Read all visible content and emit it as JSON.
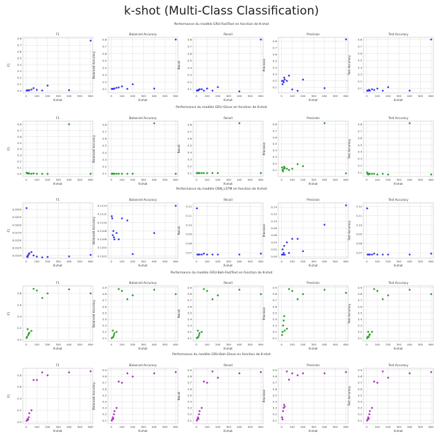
{
  "figure": {
    "title": "k-shot (Multi-Class Classification)"
  },
  "colors": {
    "blue": "#3b3bf0",
    "green": "#2ca02c",
    "purple": "#b430c8",
    "grid": "#e3e3e3",
    "frame": "#c8c8c8"
  },
  "chart_data": [
    {
      "type": "scatter",
      "model": "GRU-FastText",
      "color": "blue",
      "title": "Performance du modèle GRU-FastText en fonction de K-shot",
      "xlabel": "K-shot",
      "xlim": [
        -30,
        620
      ],
      "xticks": [
        "0",
        "100",
        "200",
        "300",
        "400",
        "500",
        "600"
      ],
      "x": [
        5,
        10,
        15,
        20,
        25,
        30,
        50,
        70,
        100,
        150,
        200,
        400,
        600
      ],
      "panels": [
        {
          "title": "F1",
          "ylabel": "F1",
          "ylim": [
            -0.03,
            0.82
          ],
          "yticks": [
            "0.0",
            "0.1",
            "0.2",
            "0.3",
            "0.4",
            "0.5",
            "0.6",
            "0.7",
            "0.8"
          ],
          "values": [
            0.005,
            0.008,
            0.005,
            0.006,
            0.01,
            0.008,
            0.02,
            0.04,
            0.015,
            0.005,
            0.08,
            0.01,
            0.77
          ]
        },
        {
          "title": "Balanced Accuracy",
          "ylabel": "Balanced Accuracy",
          "ylim": [
            0.05,
            0.83
          ],
          "yticks": [
            "0.1",
            "0.2",
            "0.3",
            "0.4",
            "0.5",
            "0.6",
            "0.7",
            "0.8"
          ],
          "values": [
            0.105,
            0.105,
            0.105,
            0.105,
            0.108,
            0.11,
            0.12,
            0.125,
            0.14,
            0.105,
            0.17,
            0.11,
            0.8
          ]
        },
        {
          "title": "Recall",
          "ylabel": "Recall",
          "ylim": [
            0.05,
            0.83
          ],
          "yticks": [
            "0.1",
            "0.2",
            "0.3",
            "0.4",
            "0.5",
            "0.6",
            "0.7",
            "0.8"
          ],
          "values": [
            0.08,
            0.085,
            0.08,
            0.09,
            0.09,
            0.1,
            0.1,
            0.08,
            0.11,
            0.08,
            0.13,
            0.07,
            0.8
          ]
        },
        {
          "title": "Precision",
          "ylabel": "Precision",
          "ylim": [
            0.02,
            0.86
          ],
          "yticks": [
            "0.1",
            "0.2",
            "0.3",
            "0.4",
            "0.5",
            "0.6",
            "0.7",
            "0.8"
          ],
          "values": [
            0.2,
            0.15,
            0.2,
            0.18,
            0.25,
            0.22,
            0.2,
            0.28,
            0.07,
            0.05,
            0.22,
            0.09,
            0.83
          ]
        },
        {
          "title": "Test Accuracy",
          "ylabel": "Test Accuracy",
          "ylim": [
            0.04,
            0.83
          ],
          "yticks": [
            "0.1",
            "0.2",
            "0.3",
            "0.4",
            "0.5",
            "0.6",
            "0.7",
            "0.8"
          ],
          "values": [
            0.07,
            0.07,
            0.07,
            0.08,
            0.08,
            0.07,
            0.09,
            0.08,
            0.1,
            0.07,
            0.12,
            0.07,
            0.8
          ]
        }
      ]
    },
    {
      "type": "scatter",
      "model": "GRU-Glove",
      "color": "green",
      "title": "Performance du modèle GRU-Glove en fonction de K-shot",
      "xlabel": "K-shot",
      "xlim": [
        -30,
        620
      ],
      "xticks": [
        "0",
        "100",
        "200",
        "300",
        "400",
        "500",
        "600"
      ],
      "x": [
        5,
        10,
        15,
        20,
        25,
        30,
        50,
        70,
        100,
        150,
        200,
        400,
        600
      ],
      "panels": [
        {
          "title": "F1",
          "ylabel": "F1",
          "ylim": [
            -0.04,
            0.85
          ],
          "yticks": [
            "0.0",
            "0.1",
            "0.2",
            "0.3",
            "0.4",
            "0.5",
            "0.6",
            "0.7",
            "0.8"
          ],
          "values": [
            0.02,
            0.015,
            0.01,
            0.01,
            0.012,
            0.008,
            0.005,
            0.01,
            0.005,
            0.005,
            0.003,
            0.8,
            0.005
          ]
        },
        {
          "title": "Balanced Accuracy",
          "ylabel": "Balanced Accuracy",
          "ylim": [
            0.06,
            0.85
          ],
          "yticks": [
            "0.1",
            "0.2",
            "0.3",
            "0.4",
            "0.5",
            "0.6",
            "0.7",
            "0.8"
          ],
          "values": [
            0.1,
            0.1,
            0.1,
            0.1,
            0.1,
            0.1,
            0.1,
            0.1,
            0.1,
            0.1,
            0.1,
            0.82,
            0.1
          ]
        },
        {
          "title": "Recall",
          "ylabel": "Recall",
          "ylim": [
            0.05,
            0.85
          ],
          "yticks": [
            "0.1",
            "0.2",
            "0.3",
            "0.4",
            "0.5",
            "0.6",
            "0.7",
            "0.8"
          ],
          "values": [
            0.1,
            0.1,
            0.1,
            0.1,
            0.1,
            0.1,
            0.1,
            0.1,
            0.1,
            0.1,
            0.1,
            0.82,
            0.1
          ]
        },
        {
          "title": "Precision",
          "ylabel": "Precision",
          "ylim": [
            0.0,
            0.85
          ],
          "yticks": [
            "0.1",
            "0.2",
            "0.3",
            "0.4",
            "0.5",
            "0.6",
            "0.7",
            "0.8"
          ],
          "values": [
            0.14,
            0.1,
            0.08,
            0.12,
            0.15,
            0.13,
            0.12,
            0.1,
            0.12,
            0.19,
            0.16,
            0.82,
            0.05
          ]
        },
        {
          "title": "Test Accuracy",
          "ylabel": "Test Accuracy",
          "ylim": [
            0.04,
            0.85
          ],
          "yticks": [
            "0.1",
            "0.2",
            "0.3",
            "0.4",
            "0.5",
            "0.6",
            "0.7",
            "0.8"
          ],
          "values": [
            0.1,
            0.08,
            0.07,
            0.08,
            0.08,
            0.08,
            0.08,
            0.08,
            0.07,
            0.08,
            0.07,
            0.82,
            0.07
          ]
        }
      ]
    },
    {
      "type": "scatter",
      "model": "CNN_LSTM",
      "color": "blue",
      "title": "Performance du modèle CNN_LSTM en fonction de K-shot",
      "xlabel": "K-shot",
      "xlim": [
        -30,
        620
      ],
      "xticks": [
        "0",
        "100",
        "200",
        "300",
        "400",
        "500",
        "600"
      ],
      "x": [
        5,
        10,
        15,
        20,
        25,
        30,
        50,
        70,
        100,
        150,
        200,
        400,
        600
      ],
      "panels": [
        {
          "title": "F1",
          "ylabel": "F1",
          "ylim": [
            0.0092,
            0.0272
          ],
          "yticks": [
            "0.0100",
            "0.0125",
            "0.0150",
            "0.0175",
            "0.0200",
            "0.0225",
            "0.0250"
          ],
          "values": [
            0.0255,
            0.0098,
            0.0096,
            0.0102,
            0.0105,
            0.0108,
            0.0112,
            0.0101,
            0.0097,
            0.0095,
            0.0096,
            0.0098,
            0.0103
          ]
        },
        {
          "title": "Balanced Accuracy",
          "ylabel": "Balanced Accuracy",
          "ylim": [
            0.11015,
            0.11147
          ],
          "yticks": [
            "0.1102",
            "0.1104",
            "0.1106",
            "0.1108",
            "0.1110",
            "0.1112",
            "0.1114"
          ],
          "values": [
            0.11115,
            0.1111,
            0.1107,
            0.1108,
            0.11065,
            0.1106,
            0.11075,
            0.1106,
            0.1111,
            0.11105,
            0.11025,
            0.11075,
            0.1114
          ]
        },
        {
          "title": "Recall",
          "ylabel": "Recall",
          "ylim": [
            0.064,
            0.124
          ],
          "yticks": [
            "0.07",
            "0.08",
            "0.09",
            "0.10",
            "0.11",
            "0.12"
          ],
          "values": [
            0.118,
            0.068,
            0.068,
            0.068,
            0.068,
            0.068,
            0.068,
            0.069,
            0.068,
            0.068,
            0.068,
            0.068,
            0.069
          ]
        },
        {
          "title": "Precision",
          "ylabel": "Precision",
          "ylim": [
            -0.005,
            0.152
          ],
          "yticks": [
            "0.00",
            "0.02",
            "0.04",
            "0.06",
            "0.08",
            "0.10",
            "0.12",
            "0.14"
          ],
          "values": [
            0.005,
            0.02,
            0.005,
            0.01,
            0.03,
            0.005,
            0.04,
            0.01,
            0.05,
            0.05,
            0.015,
            0.09,
            0.145
          ]
        },
        {
          "title": "Test Accuracy",
          "ylabel": "Test Accuracy",
          "ylim": [
            0.064,
            0.124
          ],
          "yticks": [
            "0.07",
            "0.08",
            "0.09",
            "0.10",
            "0.11",
            "0.12"
          ],
          "values": [
            0.118,
            0.068,
            0.068,
            0.068,
            0.068,
            0.068,
            0.068,
            0.069,
            0.068,
            0.068,
            0.068,
            0.068,
            0.069
          ]
        }
      ]
    },
    {
      "type": "scatter",
      "model": "GRU-Bah-FastText",
      "color": "green",
      "title": "Performance du modèle GRU-Bah-FastText en fonction de K-shot",
      "xlabel": "K-shot",
      "xlim": [
        -30,
        620
      ],
      "xticks": [
        "0",
        "100",
        "200",
        "300",
        "400",
        "500",
        "600"
      ],
      "x": [
        5,
        10,
        15,
        20,
        25,
        30,
        50,
        70,
        100,
        150,
        200,
        400,
        600
      ],
      "panels": [
        {
          "title": "F1",
          "ylabel": "F1",
          "ylim": [
            -0.03,
            0.93
          ],
          "yticks": [
            "0.0",
            "0.2",
            "0.4",
            "0.6",
            "0.8"
          ],
          "values": [
            0.03,
            0.05,
            0.18,
            0.08,
            0.1,
            0.12,
            0.15,
            0.88,
            0.85,
            0.72,
            0.8,
            0.87,
            0.8
          ]
        },
        {
          "title": "Balanced Accuracy",
          "ylabel": "Balanced Accuracy",
          "ylim": [
            0.05,
            0.93
          ],
          "yticks": [
            "0.1",
            "0.2",
            "0.3",
            "0.4",
            "0.5",
            "0.6",
            "0.7",
            "0.8",
            "0.9"
          ],
          "values": [
            0.1,
            0.11,
            0.22,
            0.12,
            0.15,
            0.18,
            0.2,
            0.88,
            0.85,
            0.72,
            0.78,
            0.87,
            0.8
          ]
        },
        {
          "title": "Recall",
          "ylabel": "Recall",
          "ylim": [
            0.05,
            0.93
          ],
          "yticks": [
            "0.1",
            "0.2",
            "0.3",
            "0.4",
            "0.5",
            "0.6",
            "0.7",
            "0.8",
            "0.9"
          ],
          "values": [
            0.1,
            0.11,
            0.22,
            0.12,
            0.15,
            0.18,
            0.2,
            0.88,
            0.85,
            0.72,
            0.78,
            0.87,
            0.8
          ]
        },
        {
          "title": "Precision",
          "ylabel": "Precision",
          "ylim": [
            0.05,
            0.93
          ],
          "yticks": [
            "0.1",
            "0.2",
            "0.3",
            "0.4",
            "0.5",
            "0.6",
            "0.7",
            "0.8",
            "0.9"
          ],
          "values": [
            0.15,
            0.2,
            0.3,
            0.38,
            0.45,
            0.22,
            0.25,
            0.88,
            0.85,
            0.72,
            0.8,
            0.87,
            0.82
          ]
        },
        {
          "title": "Test Accuracy",
          "ylabel": "Test Accuracy",
          "ylim": [
            0.05,
            0.93
          ],
          "yticks": [
            "0.1",
            "0.2",
            "0.3",
            "0.4",
            "0.5",
            "0.6",
            "0.7",
            "0.8",
            "0.9"
          ],
          "values": [
            0.1,
            0.12,
            0.2,
            0.12,
            0.15,
            0.16,
            0.2,
            0.88,
            0.85,
            0.72,
            0.78,
            0.87,
            0.8
          ]
        }
      ]
    },
    {
      "type": "scatter",
      "model": "GRU-Bah-Glove",
      "color": "purple",
      "title": "Performance du modèle GRU-Bah-Glove en fonction de K-shot",
      "xlabel": "K-shot",
      "xlim": [
        -30,
        620
      ],
      "xticks": [
        "0",
        "100",
        "200",
        "300",
        "400",
        "500",
        "600"
      ],
      "x": [
        5,
        10,
        15,
        20,
        25,
        30,
        50,
        70,
        100,
        150,
        200,
        400,
        600
      ],
      "panels": [
        {
          "title": "F1",
          "ylabel": "F1",
          "ylim": [
            -0.03,
            0.92
          ],
          "yticks": [
            "0.0",
            "0.2",
            "0.4",
            "0.6",
            "0.8"
          ],
          "values": [
            0.02,
            0.03,
            0.05,
            0.04,
            0.08,
            0.15,
            0.2,
            0.72,
            0.72,
            0.85,
            0.8,
            0.85,
            0.87
          ]
        },
        {
          "title": "Balanced Accuracy",
          "ylabel": "Balanced Accuracy",
          "ylim": [
            0.05,
            0.93
          ],
          "yticks": [
            "0.1",
            "0.2",
            "0.3",
            "0.4",
            "0.5",
            "0.6",
            "0.7",
            "0.8",
            "0.9"
          ],
          "values": [
            0.1,
            0.12,
            0.15,
            0.13,
            0.2,
            0.25,
            0.3,
            0.72,
            0.7,
            0.85,
            0.8,
            0.85,
            0.87
          ]
        },
        {
          "title": "Recall",
          "ylabel": "Recall",
          "ylim": [
            0.05,
            0.93
          ],
          "yticks": [
            "0.1",
            "0.2",
            "0.3",
            "0.4",
            "0.5",
            "0.6",
            "0.7",
            "0.8",
            "0.9"
          ],
          "values": [
            0.1,
            0.12,
            0.15,
            0.13,
            0.2,
            0.25,
            0.3,
            0.72,
            0.7,
            0.88,
            0.78,
            0.85,
            0.87
          ]
        },
        {
          "title": "Precision",
          "ylabel": "Precision",
          "ylim": [
            0.05,
            0.93
          ],
          "yticks": [
            "0.1",
            "0.2",
            "0.3",
            "0.4",
            "0.5",
            "0.6",
            "0.7",
            "0.8",
            "0.9"
          ],
          "values": [
            0.15,
            0.12,
            0.25,
            0.3,
            0.35,
            0.32,
            0.88,
            0.75,
            0.85,
            0.82,
            0.85,
            0.85,
            0.87
          ]
        },
        {
          "title": "Test Accuracy",
          "ylabel": "Test Accuracy",
          "ylim": [
            0.05,
            0.93
          ],
          "yticks": [
            "0.1",
            "0.2",
            "0.3",
            "0.4",
            "0.5",
            "0.6",
            "0.7",
            "0.8",
            "0.9"
          ],
          "values": [
            0.1,
            0.12,
            0.15,
            0.13,
            0.2,
            0.25,
            0.3,
            0.72,
            0.7,
            0.88,
            0.78,
            0.85,
            0.87
          ]
        }
      ]
    }
  ]
}
